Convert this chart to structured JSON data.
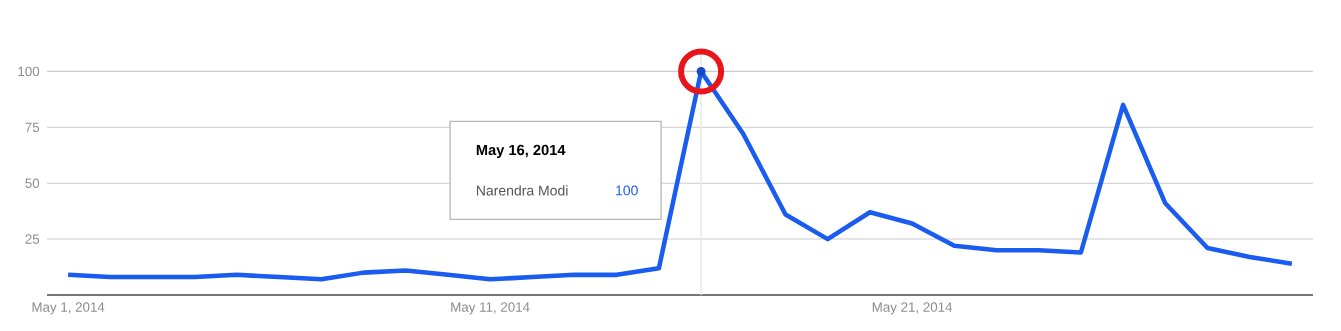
{
  "chart_data": {
    "type": "line",
    "x": [
      "2014-05-01",
      "2014-05-02",
      "2014-05-03",
      "2014-05-04",
      "2014-05-05",
      "2014-05-06",
      "2014-05-07",
      "2014-05-08",
      "2014-05-09",
      "2014-05-10",
      "2014-05-11",
      "2014-05-12",
      "2014-05-13",
      "2014-05-14",
      "2014-05-15",
      "2014-05-16",
      "2014-05-17",
      "2014-05-18",
      "2014-05-19",
      "2014-05-20",
      "2014-05-21",
      "2014-05-22",
      "2014-05-23",
      "2014-05-24",
      "2014-05-25",
      "2014-05-26",
      "2014-05-27",
      "2014-05-28",
      "2014-05-29",
      "2014-05-30"
    ],
    "series": [
      {
        "name": "Narendra Modi",
        "color": "#1a5cf0",
        "values": [
          9,
          8,
          8,
          8,
          9,
          8,
          7,
          10,
          11,
          9,
          7,
          8,
          9,
          9,
          12,
          100,
          72,
          36,
          25,
          37,
          32,
          22,
          20,
          20,
          19,
          85,
          41,
          21,
          17,
          14
        ]
      }
    ],
    "xlim": [
      "2014-04-30T12:00",
      "2014-05-30T12:00"
    ],
    "xticks": [
      {
        "value": "2014-05-01",
        "label": "May 1, 2014"
      },
      {
        "value": "2014-05-11",
        "label": "May 11, 2014"
      },
      {
        "value": "2014-05-21",
        "label": "May 21, 2014"
      }
    ],
    "ylim": [
      0,
      110
    ],
    "yticks": [
      25,
      50,
      75,
      100
    ],
    "grid": "y",
    "line_style": "solid",
    "ref_lines": [
      {
        "axis": "x",
        "value": "2014-05-16",
        "color": "#e6e6e6"
      }
    ],
    "annotations": [
      "May 16, 2014",
      "100"
    ]
  }
}
